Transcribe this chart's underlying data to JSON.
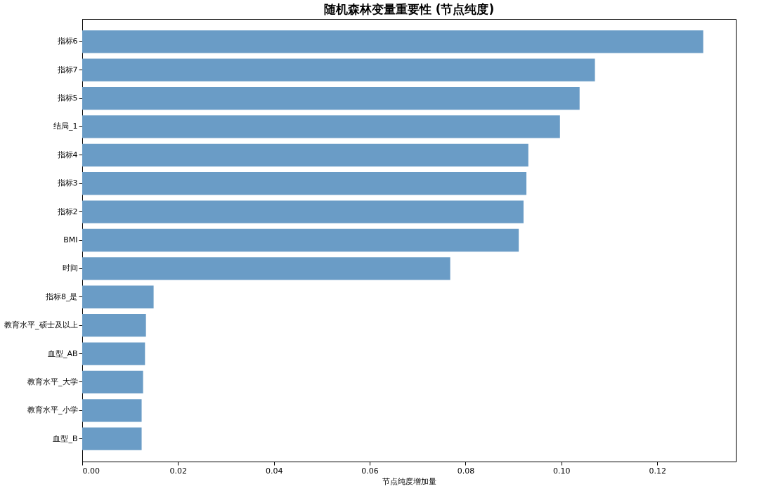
{
  "chart_data": {
    "type": "bar",
    "orientation": "horizontal",
    "title": "随机森林变量重要性 (节点纯度)",
    "xlabel": "节点纯度增加量",
    "categories": [
      "指标6",
      "指标7",
      "指标5",
      "结局_1",
      "指标4",
      "指标3",
      "指标2",
      "BMI",
      "时间",
      "指标8_是",
      "教育水平_硕士及以上",
      "血型_AB",
      "教育水平_大学",
      "教育水平_小学",
      "血型_B"
    ],
    "values": [
      0.1296,
      0.107,
      0.1038,
      0.0997,
      0.0931,
      0.0927,
      0.0921,
      0.0911,
      0.0768,
      0.0149,
      0.0133,
      0.0131,
      0.0127,
      0.0124,
      0.0124
    ],
    "color": "#6a9cc6",
    "xlim": [
      0,
      0.1364
    ],
    "xticks": [
      {
        "value": 0,
        "label": "0.00"
      },
      {
        "value": 0.02,
        "label": "0.02"
      },
      {
        "value": 0.04,
        "label": "0.04"
      },
      {
        "value": 0.06,
        "label": "0.06"
      },
      {
        "value": 0.08,
        "label": "0.08"
      },
      {
        "value": 0.1,
        "label": "0.10"
      },
      {
        "value": 0.12,
        "label": "0.12"
      }
    ],
    "grid": false
  }
}
